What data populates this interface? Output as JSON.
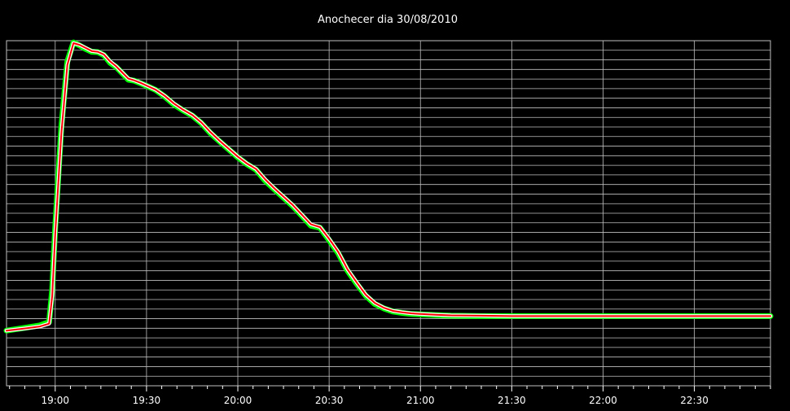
{
  "chart_data": {
    "type": "line",
    "title": "Anochecer dia 30/08/2010",
    "xlabel": "",
    "ylabel": "",
    "x_unit": "time",
    "xlim": [
      "18:44",
      "22:55"
    ],
    "x_ticks": [
      "19:00",
      "19:30",
      "20:00",
      "20:30",
      "21:00",
      "21:30",
      "22:00",
      "22:30"
    ],
    "y_ticks_labeled": false,
    "ylim": [
      0,
      100
    ],
    "grid": true,
    "legend": "none",
    "colors": {
      "background": "#000000",
      "grid": "#bfbfbf",
      "raw_samples": "#00ff00",
      "smoothed_outline": "#ffffff",
      "smoothed_line": "#ff0000"
    },
    "series": [
      {
        "style": "raw",
        "x": [
          "18:44",
          "18:50",
          "18:55",
          "18:58",
          "18:59",
          "19:00",
          "19:02",
          "19:04",
          "19:06",
          "19:08",
          "19:10",
          "19:12",
          "19:14",
          "19:16",
          "19:18",
          "19:20",
          "19:22",
          "19:24",
          "19:26",
          "19:28",
          "19:30",
          "19:33",
          "19:36",
          "19:39",
          "19:42",
          "19:45",
          "19:48",
          "19:51",
          "19:54",
          "19:57",
          "20:00",
          "20:03",
          "20:06",
          "20:09",
          "20:12",
          "20:15",
          "20:18",
          "20:21",
          "20:24",
          "20:27",
          "20:30",
          "20:33",
          "20:36",
          "20:39",
          "20:42",
          "20:45",
          "20:48",
          "20:51",
          "20:54",
          "20:57",
          "21:00",
          "21:05",
          "21:10",
          "21:20",
          "21:30",
          "22:00",
          "22:30",
          "22:55"
        ],
        "y": [
          16,
          16.8,
          17.5,
          18.5,
          28,
          46,
          75,
          94,
          99.5,
          98.6,
          97.6,
          96.8,
          96.7,
          95.8,
          93.6,
          92.4,
          90.6,
          88.7,
          88.4,
          87.7,
          86.9,
          85.7,
          83.8,
          81.5,
          79.8,
          78.3,
          76.1,
          73.2,
          70.8,
          68.5,
          66.2,
          64.2,
          62.6,
          59.4,
          56.9,
          54.5,
          52.1,
          49.3,
          46.4,
          45.8,
          42.2,
          38.4,
          33.4,
          29.6,
          26.1,
          23.7,
          22.4,
          21.5,
          21.1,
          20.8,
          20.7,
          20.5,
          20.3,
          20.2,
          20.2,
          20.2,
          20.2,
          20.2
        ]
      },
      {
        "style": "smoothed",
        "x": [
          "18:44",
          "18:50",
          "18:55",
          "18:58",
          "18:59",
          "19:00",
          "19:02",
          "19:04",
          "19:06",
          "19:08",
          "19:10",
          "19:12",
          "19:14",
          "19:16",
          "19:18",
          "19:20",
          "19:22",
          "19:24",
          "19:26",
          "19:28",
          "19:30",
          "19:33",
          "19:36",
          "19:39",
          "19:42",
          "19:45",
          "19:48",
          "19:51",
          "19:54",
          "19:57",
          "20:00",
          "20:03",
          "20:06",
          "20:09",
          "20:12",
          "20:15",
          "20:18",
          "20:21",
          "20:24",
          "20:27",
          "20:30",
          "20:33",
          "20:36",
          "20:39",
          "20:42",
          "20:45",
          "20:48",
          "20:51",
          "20:54",
          "20:57",
          "21:00",
          "21:05",
          "21:10",
          "21:20",
          "21:30",
          "22:00",
          "22:30",
          "22:55"
        ],
        "y": [
          16,
          16.6,
          17.2,
          18,
          26,
          44,
          73,
          93,
          99.3,
          98.8,
          97.9,
          97,
          96.8,
          96,
          94,
          92.6,
          90.8,
          89,
          88.5,
          87.8,
          87,
          85.8,
          84,
          81.8,
          80,
          78.5,
          76.3,
          73.5,
          71,
          68.7,
          66.4,
          64.4,
          62.8,
          59.8,
          57.2,
          54.8,
          52.4,
          49.6,
          46.8,
          46,
          42.6,
          38.8,
          33.8,
          30,
          26.4,
          24,
          22.6,
          21.7,
          21.3,
          21,
          20.8,
          20.6,
          20.4,
          20.3,
          20.2,
          20.2,
          20.2,
          20.2
        ]
      }
    ]
  }
}
